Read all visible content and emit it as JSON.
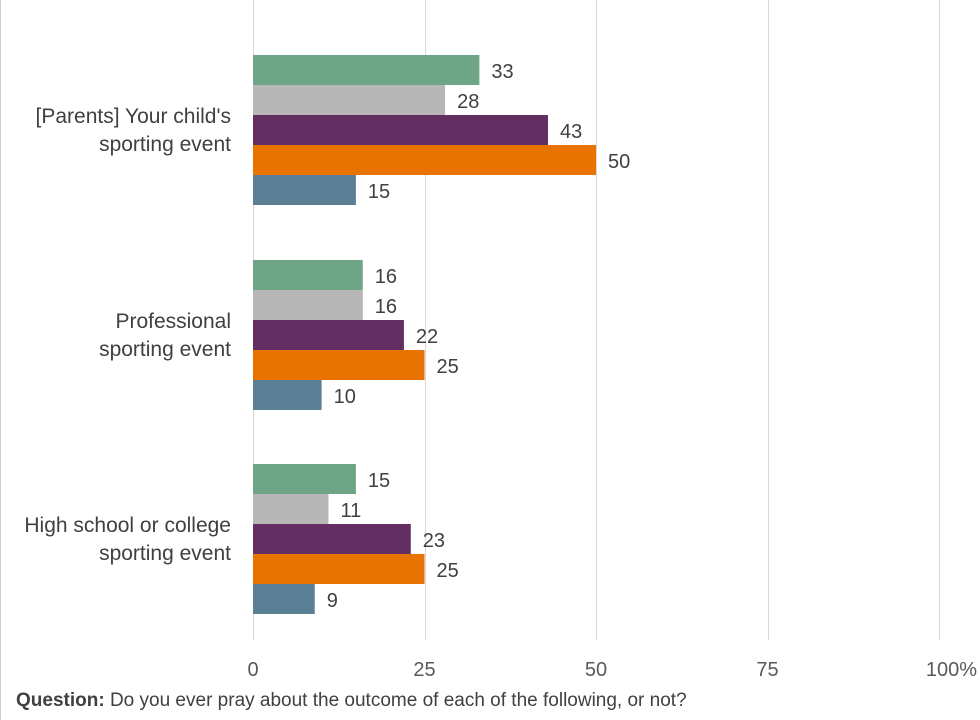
{
  "chart_data": {
    "type": "bar",
    "orientation": "horizontal",
    "categories": [
      [
        "[Parents] Your child's",
        "sporting event"
      ],
      [
        "Professional",
        "sporting event"
      ],
      [
        "High school or college",
        "sporting event"
      ]
    ],
    "series": [
      {
        "color": "#6fa587",
        "values": [
          33,
          16,
          15
        ]
      },
      {
        "color": "#b7b7b7",
        "values": [
          28,
          16,
          11
        ]
      },
      {
        "color": "#632e62",
        "values": [
          43,
          22,
          23
        ]
      },
      {
        "color": "#e87300",
        "values": [
          50,
          25,
          25
        ]
      },
      {
        "color": "#5b7f95",
        "values": [
          15,
          10,
          9
        ]
      }
    ],
    "x_ticks": [
      "0",
      "25",
      "50",
      "75",
      "100%"
    ],
    "x_tick_values": [
      0,
      25,
      50,
      75,
      100
    ],
    "xlim": [
      0,
      100
    ],
    "grid": true,
    "legend": "none"
  },
  "footnote": {
    "label": "Question:",
    "text": " Do you ever pray about the outcome of each of the following, or not?"
  }
}
